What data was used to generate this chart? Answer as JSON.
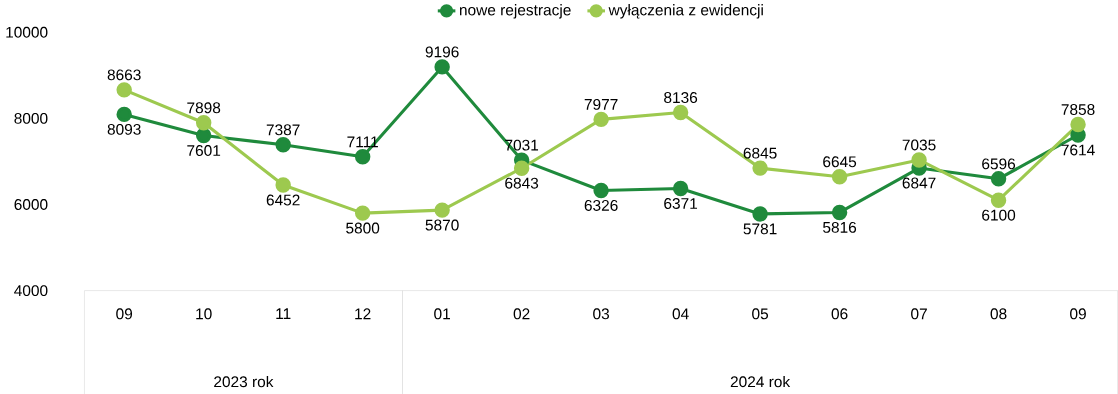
{
  "chart_data": {
    "type": "line",
    "categories": [
      "09",
      "10",
      "11",
      "12",
      "01",
      "02",
      "03",
      "04",
      "05",
      "06",
      "07",
      "08",
      "09"
    ],
    "series": [
      {
        "name": "nowe rejestracje",
        "color": "#1f8a3c",
        "values": [
          8093,
          7601,
          7387,
          7111,
          9196,
          7031,
          6326,
          6371,
          5781,
          5816,
          6847,
          6596,
          7614
        ]
      },
      {
        "name": "wyłączenia z ewidencji",
        "color": "#9dc94f",
        "values": [
          8663,
          7898,
          6452,
          5800,
          5870,
          6843,
          7977,
          8136,
          6845,
          6645,
          7035,
          6100,
          7858
        ]
      }
    ],
    "ylim": [
      4000,
      10000
    ],
    "yticks": [
      4000,
      6000,
      8000,
      10000
    ],
    "annotations": [
      "2023 rok",
      "2024 rok"
    ],
    "data_labels": true,
    "grid": false,
    "legend": "top",
    "marker": "circle",
    "line_style": "solid"
  }
}
